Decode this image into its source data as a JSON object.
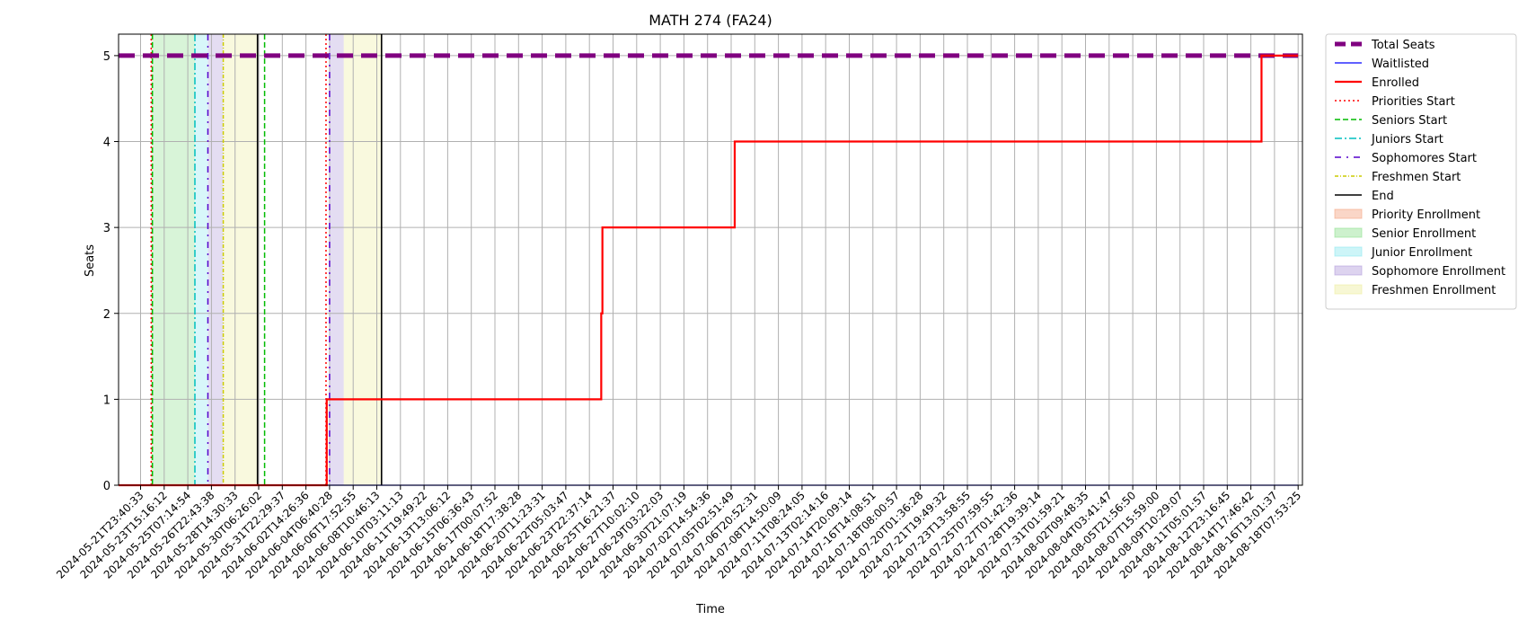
{
  "chart_data": {
    "type": "line",
    "title": "MATH 274 (FA24)",
    "xlabel": "Time",
    "ylabel": "Seats",
    "ylim": [
      0,
      5.25
    ],
    "yticks": [
      0,
      1,
      2,
      3,
      4,
      5
    ],
    "grid": true,
    "legend_position": "outside-right",
    "x_tick_labels": [
      "2024-05-21T23:40:33",
      "2024-05-23T15:16:12",
      "2024-05-25T07:14:54",
      "2024-05-26T22:43:38",
      "2024-05-28T14:30:33",
      "2024-05-30T06:26:02",
      "2024-05-31T22:29:37",
      "2024-06-02T14:26:36",
      "2024-06-04T06:40:28",
      "2024-06-06T17:52:55",
      "2024-06-08T10:46:13",
      "2024-06-10T03:11:13",
      "2024-06-11T19:49:22",
      "2024-06-13T13:06:12",
      "2024-06-15T06:36:43",
      "2024-06-17T00:07:52",
      "2024-06-18T17:38:28",
      "2024-06-20T11:23:31",
      "2024-06-22T05:03:47",
      "2024-06-23T22:37:14",
      "2024-06-25T16:21:37",
      "2024-06-27T10:02:10",
      "2024-06-29T03:22:03",
      "2024-06-30T21:07:19",
      "2024-07-02T14:54:36",
      "2024-07-05T02:51:49",
      "2024-07-06T20:52:31",
      "2024-07-08T14:50:09",
      "2024-07-11T08:24:05",
      "2024-07-13T02:14:16",
      "2024-07-14T20:09:14",
      "2024-07-16T14:08:51",
      "2024-07-18T08:00:57",
      "2024-07-20T01:36:28",
      "2024-07-21T19:49:32",
      "2024-07-23T13:58:55",
      "2024-07-25T07:59:55",
      "2024-07-27T01:42:36",
      "2024-07-28T19:39:14",
      "2024-07-31T01:59:21",
      "2024-08-02T09:48:35",
      "2024-08-04T03:41:47",
      "2024-08-05T21:56:50",
      "2024-08-07T15:59:00",
      "2024-08-09T10:29:07",
      "2024-08-11T05:01:57",
      "2024-08-12T23:16:45",
      "2024-08-14T17:46:42",
      "2024-08-16T13:01:37",
      "2024-08-18T07:53:25"
    ],
    "series": [
      {
        "name": "Total Seats",
        "color": "#800080",
        "style": "dashed-thick",
        "points": [
          [
            -1.0,
            5
          ],
          [
            49.0,
            5
          ]
        ]
      },
      {
        "name": "Waitlisted",
        "color": "#0000ff",
        "style": "solid-thin",
        "points": [
          [
            -1.0,
            0
          ],
          [
            49.0,
            0
          ]
        ]
      },
      {
        "name": "Enrolled",
        "color": "#ff0000",
        "style": "step-solid",
        "points": [
          [
            -1.0,
            0
          ],
          [
            7.88,
            0
          ],
          [
            7.88,
            1
          ],
          [
            19.5,
            1
          ],
          [
            19.5,
            2
          ],
          [
            19.55,
            2
          ],
          [
            19.55,
            3
          ],
          [
            25.15,
            3
          ],
          [
            25.15,
            4
          ],
          [
            47.45,
            4
          ],
          [
            47.45,
            5
          ],
          [
            49.0,
            5
          ]
        ]
      }
    ],
    "vertical_markers": [
      {
        "name": "Priorities Start",
        "color": "#ff0000",
        "style": "dotted",
        "x": [
          0.45,
          7.85
        ]
      },
      {
        "name": "Seniors Start",
        "color": "#00bb00",
        "style": "dashed",
        "x": [
          0.5,
          5.25
        ]
      },
      {
        "name": "Juniors Start",
        "color": "#00bfbf",
        "style": "dashdot",
        "x": [
          2.3
        ]
      },
      {
        "name": "Sophomores Start",
        "color": "#5500cc",
        "style": "loosely-dashdot",
        "x": [
          2.85,
          8.0
        ]
      },
      {
        "name": "Freshmen Start",
        "color": "#cccc00",
        "style": "dashdot-fine",
        "x": [
          3.5
        ]
      },
      {
        "name": "End",
        "color": "#000000",
        "style": "solid",
        "x": [
          4.95,
          10.2
        ]
      }
    ],
    "shaded_regions": [
      {
        "name": "Priority Enrollment",
        "color": "#f4a582",
        "ranges": [
          [
            0.45,
            0.5
          ]
        ]
      },
      {
        "name": "Senior Enrollment",
        "color": "#90e090",
        "ranges": [
          [
            0.5,
            2.3
          ]
        ]
      },
      {
        "name": "Junior Enrollment",
        "color": "#90e8f0",
        "ranges": [
          [
            2.3,
            2.85
          ]
        ]
      },
      {
        "name": "Sophomore Enrollment",
        "color": "#b39ddb",
        "ranges": [
          [
            2.85,
            3.5
          ],
          [
            8.0,
            8.6
          ]
        ]
      },
      {
        "name": "Freshmen Enrollment",
        "color": "#eeeea0",
        "ranges": [
          [
            3.5,
            4.95
          ],
          [
            8.6,
            10.2
          ]
        ]
      }
    ]
  }
}
